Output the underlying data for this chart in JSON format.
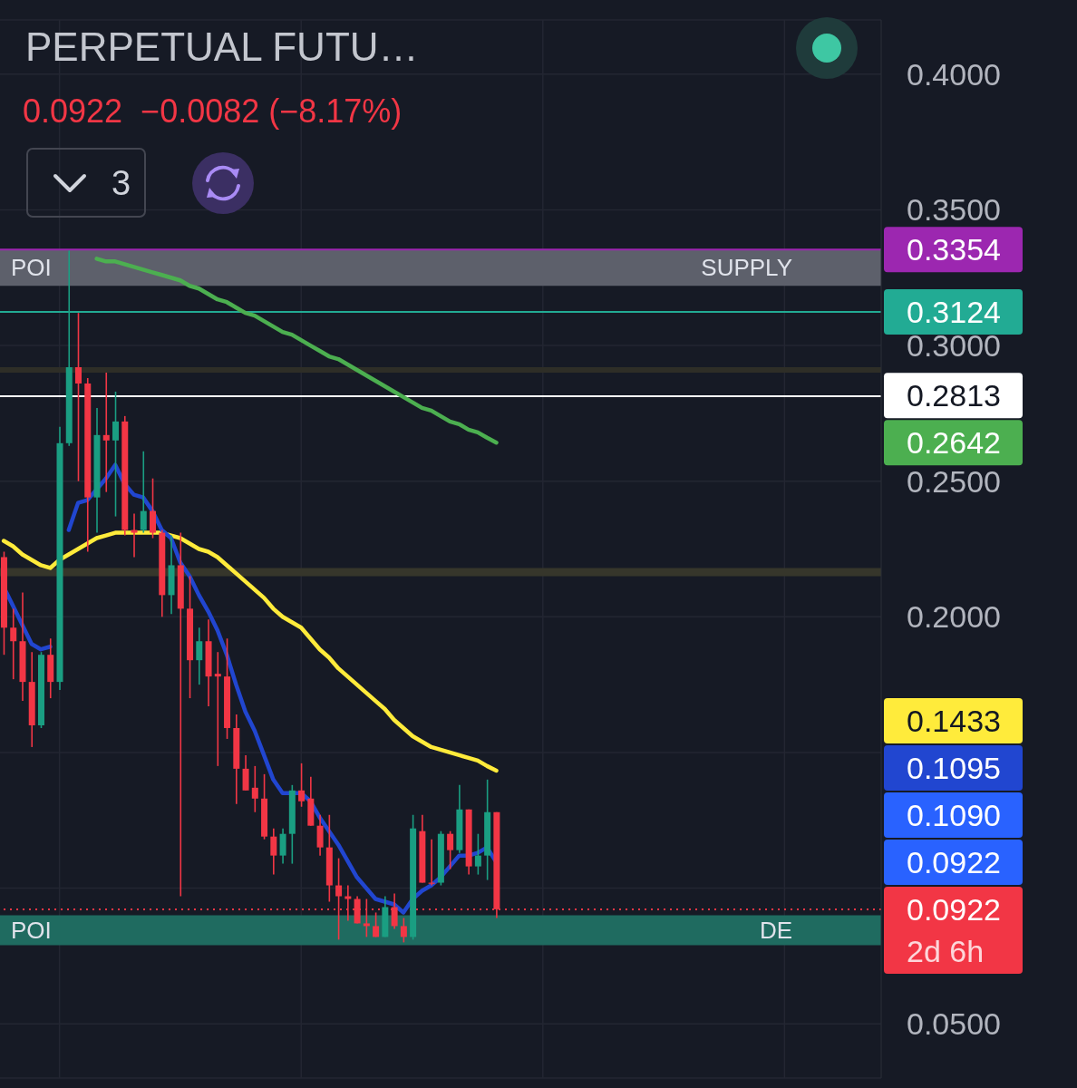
{
  "chart_data": {
    "type": "candlestick",
    "title": "PERPETUAL FUTU…",
    "subtitle": "0.0922  −0.0082 (−8.17%)",
    "categories": [
      null,
      null,
      null,
      null,
      null,
      null,
      null,
      null,
      null,
      null,
      null,
      null,
      null,
      null,
      null,
      null,
      null,
      null,
      null,
      null,
      null,
      null,
      null,
      null,
      null,
      null,
      null,
      null,
      null,
      null,
      null,
      null,
      null,
      null,
      null,
      null,
      null,
      null,
      null,
      null,
      null,
      null,
      null,
      null,
      null,
      null,
      null,
      null,
      null,
      null,
      null,
      null,
      null,
      null
    ],
    "ohlc": [
      [
        0.222,
        0.224,
        0.186,
        0.196
      ],
      [
        0.196,
        0.203,
        0.177,
        0.191
      ],
      [
        0.191,
        0.209,
        0.169,
        0.176
      ],
      [
        0.176,
        0.187,
        0.152,
        0.16
      ],
      [
        0.16,
        0.187,
        0.159,
        0.186
      ],
      [
        0.186,
        0.192,
        0.17,
        0.176
      ],
      [
        0.176,
        0.27,
        0.173,
        0.264
      ],
      [
        0.264,
        0.335,
        0.263,
        0.292
      ],
      [
        0.292,
        0.312,
        0.25,
        0.286
      ],
      [
        0.286,
        0.288,
        0.224,
        0.244
      ],
      [
        0.244,
        0.277,
        0.231,
        0.267
      ],
      [
        0.267,
        0.29,
        0.246,
        0.265
      ],
      [
        0.265,
        0.283,
        0.237,
        0.272
      ],
      [
        0.272,
        0.274,
        0.23,
        0.232
      ],
      [
        0.232,
        0.238,
        0.222,
        0.231
      ],
      [
        0.232,
        0.261,
        0.231,
        0.239
      ],
      [
        0.239,
        0.251,
        0.229,
        0.231
      ],
      [
        0.231,
        0.232,
        0.2,
        0.208
      ],
      [
        0.208,
        0.23,
        0.201,
        0.219
      ],
      [
        0.219,
        0.231,
        0.097,
        0.203
      ],
      [
        0.203,
        0.215,
        0.17,
        0.184
      ],
      [
        0.184,
        0.196,
        0.175,
        0.191
      ],
      [
        0.191,
        0.199,
        0.167,
        0.178
      ],
      [
        0.179,
        0.187,
        0.145,
        0.178
      ],
      [
        0.178,
        0.192,
        0.155,
        0.159
      ],
      [
        0.159,
        0.164,
        0.131,
        0.144
      ],
      [
        0.144,
        0.149,
        0.136,
        0.136
      ],
      [
        0.137,
        0.145,
        0.128,
        0.133
      ],
      [
        0.133,
        0.142,
        0.118,
        0.119
      ],
      [
        0.119,
        0.122,
        0.105,
        0.112
      ],
      [
        0.112,
        0.122,
        0.109,
        0.12
      ],
      [
        0.12,
        0.138,
        0.109,
        0.136
      ],
      [
        0.136,
        0.146,
        0.13,
        0.132
      ],
      [
        0.133,
        0.141,
        0.123,
        0.123
      ],
      [
        0.123,
        0.127,
        0.112,
        0.115
      ],
      [
        0.115,
        0.127,
        0.095,
        0.101
      ],
      [
        0.101,
        0.111,
        0.081,
        0.097
      ],
      [
        0.097,
        0.101,
        0.088,
        0.096
      ],
      [
        0.096,
        0.097,
        0.087,
        0.087
      ],
      [
        0.087,
        0.096,
        0.082,
        0.086
      ],
      [
        0.086,
        0.091,
        0.082,
        0.082
      ],
      [
        0.082,
        0.097,
        0.082,
        0.093
      ],
      [
        0.093,
        0.098,
        0.085,
        0.086
      ],
      [
        0.086,
        0.089,
        0.08,
        0.082
      ],
      [
        0.082,
        0.127,
        0.081,
        0.122
      ],
      [
        0.121,
        0.127,
        0.102,
        0.102
      ],
      [
        0.102,
        0.118,
        0.101,
        0.102
      ],
      [
        0.102,
        0.121,
        0.101,
        0.12
      ],
      [
        0.12,
        0.121,
        0.107,
        0.114
      ],
      [
        0.114,
        0.138,
        0.113,
        0.129
      ],
      [
        0.129,
        0.129,
        0.105,
        0.108
      ],
      [
        0.108,
        0.12,
        0.105,
        0.112
      ],
      [
        0.112,
        0.14,
        0.103,
        0.128
      ],
      [
        0.128,
        0.128,
        0.089,
        0.0922
      ]
    ],
    "colors": [
      "#f23645",
      "#f23645",
      "#f23645",
      "#f23645",
      "#1a9e82",
      "#f23645",
      "#1a9e82",
      "#1a9e82",
      "#f23645",
      "#f23645",
      "#1a9e82",
      "#f23645",
      "#1a9e82",
      "#f23645",
      "#f23645",
      "#1a9e82",
      "#f23645",
      "#f23645",
      "#1a9e82",
      "#f23645",
      "#f23645",
      "#1a9e82",
      "#f23645",
      "#f23645",
      "#f23645",
      "#f23645",
      "#f23645",
      "#f23645",
      "#f23645",
      "#f23645",
      "#1a9e82",
      "#1a9e82",
      "#f23645",
      "#f23645",
      "#f23645",
      "#f23645",
      "#f23645",
      "#f23645",
      "#f23645",
      "#f23645",
      "#f23645",
      "#1a9e82",
      "#f23645",
      "#f23645",
      "#1a9e82",
      "#f23645",
      "#f23645",
      "#1a9e82",
      "#f23645",
      "#1a9e82",
      "#f23645",
      "#1a9e82",
      "#1a9e82",
      "#f23645"
    ],
    "series": [
      {
        "type": "line",
        "color": "#4caf50",
        "values": [
          null,
          null,
          null,
          null,
          null,
          null,
          null,
          null,
          null,
          null,
          0.332,
          0.331,
          0.331,
          0.33,
          0.329,
          0.328,
          0.327,
          0.326,
          0.325,
          0.324,
          0.322,
          0.321,
          0.319,
          0.317,
          0.316,
          0.314,
          0.312,
          0.311,
          0.309,
          0.307,
          0.305,
          0.304,
          0.302,
          0.3,
          0.298,
          0.296,
          0.295,
          0.293,
          0.291,
          0.289,
          0.287,
          0.285,
          0.283,
          0.281,
          0.279,
          0.277,
          0.276,
          0.274,
          0.272,
          0.271,
          0.269,
          0.268,
          0.266,
          0.2642
        ]
      },
      {
        "type": "line",
        "color": "#ffeb3b",
        "values": [
          0.228,
          0.226,
          0.223,
          0.221,
          0.219,
          0.218,
          0.221,
          0.223,
          0.225,
          0.227,
          0.229,
          0.23,
          0.231,
          0.231,
          0.231,
          0.231,
          0.231,
          0.231,
          0.23,
          0.229,
          0.227,
          0.225,
          0.224,
          0.222,
          0.219,
          0.216,
          0.213,
          0.21,
          0.207,
          0.203,
          0.2,
          0.198,
          0.196,
          0.192,
          0.188,
          0.185,
          0.181,
          0.178,
          0.175,
          0.172,
          0.169,
          0.166,
          0.162,
          0.159,
          0.156,
          0.154,
          0.152,
          0.151,
          0.15,
          0.149,
          0.148,
          0.147,
          0.145,
          0.1433
        ]
      },
      {
        "type": "line",
        "color": "#2146d0",
        "values": [
          0.211,
          0.204,
          0.197,
          0.19,
          0.188,
          0.189,
          null,
          0.232,
          0.242,
          0.243,
          0.247,
          0.251,
          0.256,
          0.249,
          0.245,
          0.244,
          0.239,
          0.232,
          0.229,
          0.22,
          0.215,
          0.208,
          0.202,
          0.195,
          0.186,
          0.175,
          0.165,
          0.158,
          0.149,
          0.14,
          0.135,
          0.135,
          0.135,
          0.132,
          0.126,
          0.121,
          0.116,
          0.11,
          0.104,
          0.1,
          0.096,
          0.095,
          0.094,
          0.091,
          0.096,
          0.099,
          0.101,
          0.104,
          0.108,
          0.112,
          0.112,
          0.113,
          0.115,
          0.1095
        ]
      }
    ],
    "ylim": [
      0.03,
      0.42
    ],
    "yticks": [
      {
        "value": 0.05,
        "label": "0.0500"
      },
      {
        "value": 0.1,
        "label": null
      },
      {
        "value": 0.15,
        "label": null
      },
      {
        "value": 0.2,
        "label": "0.2000"
      },
      {
        "value": 0.25,
        "label": "0.2500"
      },
      {
        "value": 0.3,
        "label": "0.3000"
      },
      {
        "value": 0.35,
        "label": "0.3500"
      },
      {
        "value": 0.4,
        "label": "0.4000"
      }
    ],
    "grid": true,
    "ref_lines": [
      {
        "axis": "y",
        "value": 0.3354,
        "label": "0.3354",
        "color": "#9c27b0"
      },
      {
        "axis": "y",
        "value": 0.3124,
        "label": "0.3124",
        "color": "#22ab94"
      },
      {
        "axis": "y",
        "value": 0.2813,
        "label": "0.2813",
        "color": "#ffffff"
      },
      {
        "axis": "y",
        "value": 0.0922,
        "label": "0.0922\n2d 6h",
        "color": "#f23645",
        "line_style": "dotted"
      }
    ],
    "bands": [
      {
        "axis": "y",
        "from": 0.322,
        "to": 0.3354,
        "label": "SUPPLY",
        "color": "#5d606b"
      },
      {
        "axis": "y",
        "from": 0.079,
        "to": 0.09,
        "label": "DE",
        "color": "#1f6b60"
      },
      {
        "axis": "y",
        "from": 0.29,
        "to": 0.292,
        "color": "#2e2e27"
      },
      {
        "axis": "y",
        "from": 0.215,
        "to": 0.218,
        "color": "#36362b"
      }
    ],
    "annotations": [
      "POI",
      "POI",
      "3",
      "0.2642",
      "0.1433",
      "0.1095",
      "0.1090",
      "0.0922"
    ]
  }
}
